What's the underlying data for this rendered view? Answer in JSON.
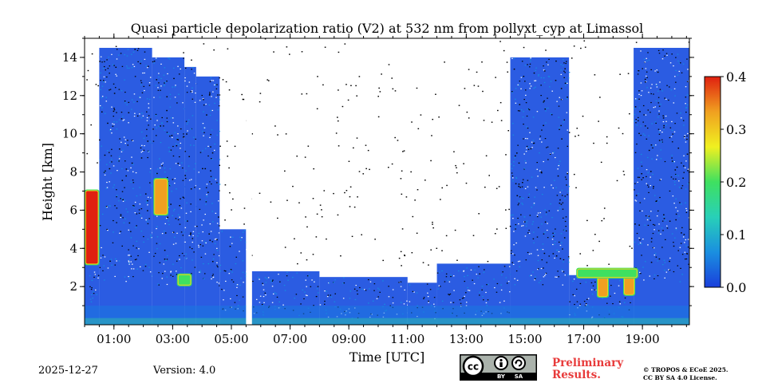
{
  "chart_data": {
    "type": "heatmap",
    "title": "Quasi particle depolarization ratio (V2) at 532 nm from pollyxt_cyp at Limassol",
    "xlabel": "Time [UTC]",
    "ylabel": "Height [km]",
    "x_range_hours": [
      0.0,
      20.6
    ],
    "ylim": [
      0,
      15
    ],
    "x_ticks": [
      {
        "hour": 1,
        "label": "01:00"
      },
      {
        "hour": 3,
        "label": "03:00"
      },
      {
        "hour": 5,
        "label": "05:00"
      },
      {
        "hour": 7,
        "label": "07:00"
      },
      {
        "hour": 9,
        "label": "09:00"
      },
      {
        "hour": 11,
        "label": "11:00"
      },
      {
        "hour": 13,
        "label": "13:00"
      },
      {
        "hour": 15,
        "label": "15:00"
      },
      {
        "hour": 17,
        "label": "17:00"
      },
      {
        "hour": 19,
        "label": "19:00"
      }
    ],
    "y_ticks": [
      {
        "value": 2,
        "label": "2"
      },
      {
        "value": 4,
        "label": "4"
      },
      {
        "value": 6,
        "label": "6"
      },
      {
        "value": 8,
        "label": "8"
      },
      {
        "value": 10,
        "label": "10"
      },
      {
        "value": 12,
        "label": "12"
      },
      {
        "value": 14,
        "label": "14"
      }
    ],
    "colorbar": {
      "range": [
        0.0,
        0.4
      ],
      "ticks": [
        {
          "value": 0.0,
          "label": "0.0"
        },
        {
          "value": 0.1,
          "label": "0.1"
        },
        {
          "value": 0.2,
          "label": "0.2"
        },
        {
          "value": 0.3,
          "label": "0.3"
        },
        {
          "value": 0.4,
          "label": "0.4"
        }
      ],
      "colors": [
        "#1a3fdc",
        "#1a8fe0",
        "#28d0b8",
        "#3fe060",
        "#f0f020",
        "#f0a020",
        "#e02010"
      ]
    },
    "signal_columns": [
      {
        "start": 0.0,
        "end": 0.5,
        "top_km": 6.2
      },
      {
        "start": 0.5,
        "end": 2.3,
        "top_km": 14.5
      },
      {
        "start": 2.3,
        "end": 3.4,
        "top_km": 14.0
      },
      {
        "start": 3.4,
        "end": 3.8,
        "top_km": 13.5
      },
      {
        "start": 3.8,
        "end": 4.6,
        "top_km": 13.0
      },
      {
        "start": 4.6,
        "end": 5.5,
        "top_km": 5.0
      },
      {
        "start": 5.7,
        "end": 8.0,
        "top_km": 2.8
      },
      {
        "start": 8.0,
        "end": 11.0,
        "top_km": 2.5
      },
      {
        "start": 11.0,
        "end": 12.0,
        "top_km": 2.2
      },
      {
        "start": 12.0,
        "end": 14.5,
        "top_km": 3.2
      },
      {
        "start": 14.5,
        "end": 16.5,
        "top_km": 14.0
      },
      {
        "start": 16.5,
        "end": 18.7,
        "top_km": 2.6
      },
      {
        "start": 18.7,
        "end": 20.6,
        "top_km": 14.5
      }
    ],
    "gap": {
      "start": 5.5,
      "end": 5.7
    },
    "high_depol_features": [
      {
        "start": 0.05,
        "end": 0.45,
        "bottom_km": 3.2,
        "top_km": 7.0,
        "value": 0.38
      },
      {
        "start": 2.4,
        "end": 2.8,
        "bottom_km": 5.8,
        "top_km": 7.6,
        "value": 0.33
      },
      {
        "start": 17.5,
        "end": 17.8,
        "bottom_km": 1.5,
        "top_km": 2.8,
        "value": 0.35
      },
      {
        "start": 18.4,
        "end": 18.7,
        "bottom_km": 1.6,
        "top_km": 2.7,
        "value": 0.36
      },
      {
        "start": 16.8,
        "end": 18.8,
        "bottom_km": 2.5,
        "top_km": 2.9,
        "value": 0.22
      },
      {
        "start": 3.2,
        "end": 3.6,
        "bottom_km": 2.1,
        "top_km": 2.6,
        "value": 0.2
      }
    ]
  },
  "footer": {
    "date": "2025-12-27",
    "version": "Version: 4.0",
    "preliminary_line1": "Preliminary",
    "preliminary_line2": "Results.",
    "license_line1": "© TROPOS & ECoE 2025.",
    "license_line2": "CC BY SA 4.0 License.",
    "badge_by": "BY",
    "badge_sa": "SA"
  }
}
